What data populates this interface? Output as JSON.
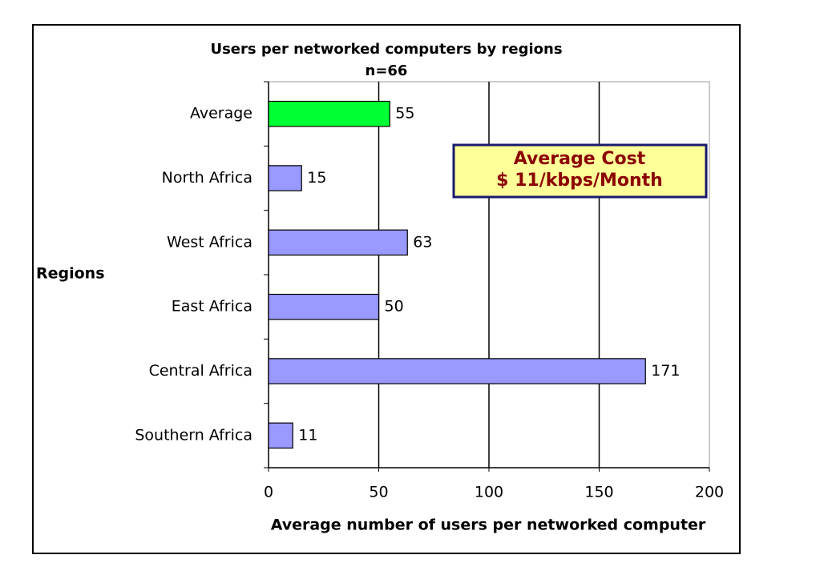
{
  "chart_data": {
    "type": "hbar",
    "title": "Users per networked computers by regions",
    "subtitle": "n=66",
    "y_label": "Regions",
    "x_label": "Average number of users per networked computer",
    "categories": [
      "Average",
      "North Africa",
      "West Africa",
      "East Africa",
      "Central Africa",
      "Southern Africa"
    ],
    "values": [
      55,
      15,
      63,
      50,
      171,
      11
    ],
    "colors": [
      "#00ff33",
      "#9999ff",
      "#9999ff",
      "#9999ff",
      "#9999ff",
      "#9999ff"
    ],
    "xlim": [
      0,
      200
    ],
    "xticks": [
      0,
      50,
      100,
      150,
      200
    ],
    "grid": true,
    "annotations": [
      "Average Cost",
      "$ 11/kbps/Month"
    ]
  }
}
